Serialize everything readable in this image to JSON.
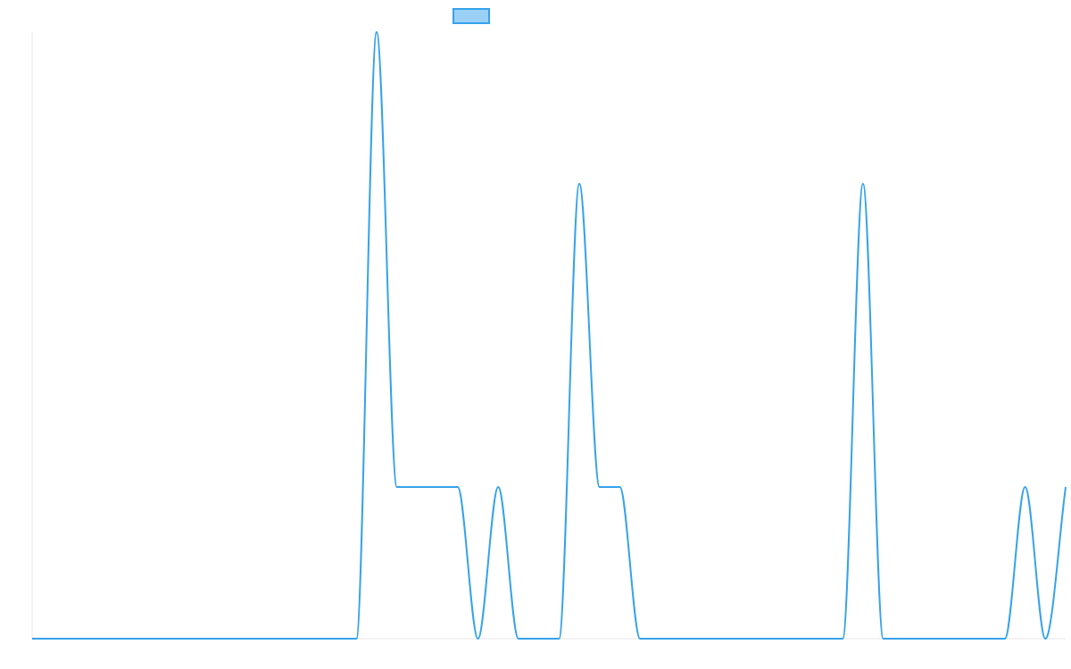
{
  "chart_data": {
    "type": "line",
    "title": "",
    "xlabel": "",
    "ylabel": "",
    "grid": false,
    "legend": {
      "placement": "top-center",
      "entries": [
        {
          "label": "",
          "color": "#36a2eb",
          "fill": "#9ad0f5"
        }
      ]
    },
    "x": [
      0,
      1,
      2,
      3,
      4,
      5,
      6,
      7,
      8,
      9,
      10,
      11,
      12,
      13,
      14,
      15,
      16,
      17,
      18,
      19,
      20,
      21,
      22,
      23,
      24,
      25,
      26,
      27,
      28,
      29,
      30,
      31,
      32,
      33,
      34,
      35,
      36,
      37,
      38,
      39,
      40,
      41,
      42,
      43,
      44,
      45,
      46,
      47,
      48,
      49,
      50,
      51
    ],
    "ylim": [
      0,
      4
    ],
    "series": [
      {
        "color": "#36a2eb",
        "values": [
          0,
          0,
          0,
          0,
          0,
          0,
          0,
          0,
          0,
          0,
          0,
          0,
          0,
          0,
          0,
          0,
          0,
          4,
          1,
          1,
          1,
          1,
          0,
          1,
          0,
          0,
          0,
          3,
          1,
          1,
          0,
          0,
          0,
          0,
          0,
          0,
          0,
          0,
          0,
          0,
          0,
          3,
          0,
          0,
          0,
          0,
          0,
          0,
          0,
          1,
          0,
          1
        ]
      }
    ]
  }
}
